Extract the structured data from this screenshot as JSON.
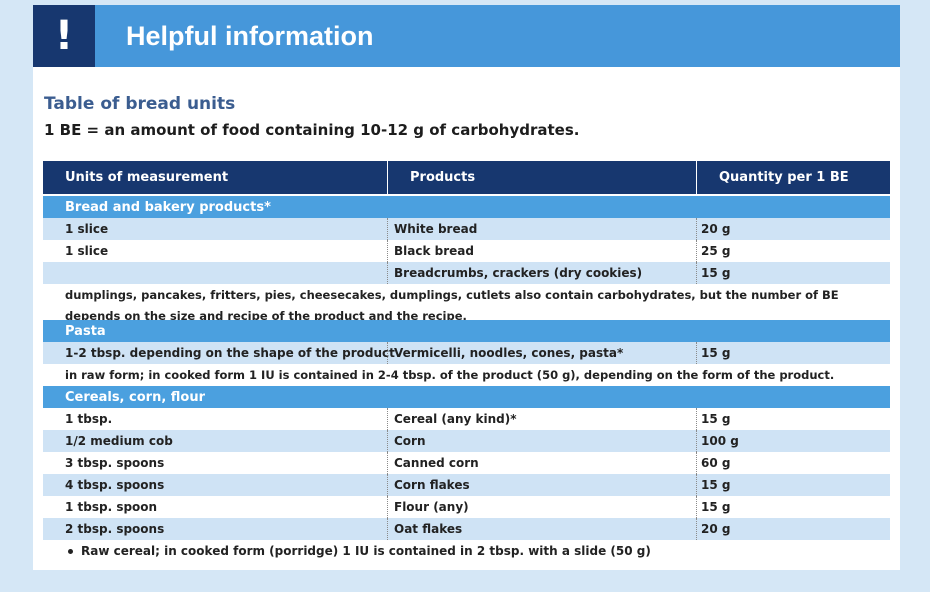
{
  "header": {
    "icon": "!",
    "title": "Helpful information"
  },
  "intro": {
    "title": "Table of bread units",
    "definition": "1 BE = an amount of food containing 10-12 g of carbohydrates."
  },
  "table": {
    "columns": [
      "Units of measurement",
      "Products",
      "Quantity per 1 BE"
    ],
    "sections": [
      {
        "title": "Bread and bakery products*",
        "rows": [
          [
            "1 slice",
            "White bread",
            "20 g"
          ],
          [
            "1 slice",
            "Black bread",
            "25 g"
          ],
          [
            null,
            "Breadcrumbs, crackers (dry cookies)",
            "15 g"
          ]
        ],
        "note": "dumplings, pancakes, fritters, pies, cheesecakes, dumplings, cutlets also contain carbohydrates, but the number of BE depends on the size and recipe of the product and the recipe."
      },
      {
        "title": "Pasta",
        "rows": [
          [
            "1-2 tbsp. depending on the shape of the product",
            "Vermicelli, noodles, cones, pasta*",
            "15 g"
          ]
        ],
        "note": "in raw form; in cooked form 1 IU is contained in 2-4 tbsp. of the product (50 g), depending on the form of the product."
      },
      {
        "title": "Cereals, corn, flour",
        "rows": [
          [
            "1 tbsp.",
            "Cereal (any kind)*",
            "15 g"
          ],
          [
            "1/2 medium cob",
            "Corn",
            "100 g"
          ],
          [
            "3 tbsp. spoons",
            "Canned corn",
            "60 g"
          ],
          [
            "4 tbsp. spoons",
            "Corn flakes",
            "15 g"
          ],
          [
            "1 tbsp. spoon",
            "Flour (any)",
            "15 g"
          ],
          [
            "2 tbsp. spoons",
            "Oat flakes",
            "20 g"
          ]
        ],
        "note": null
      }
    ]
  },
  "footnote": "Raw cereal; in cooked form (porridge) 1 IU is contained in 2 tbsp. with a slide (50 g)"
}
